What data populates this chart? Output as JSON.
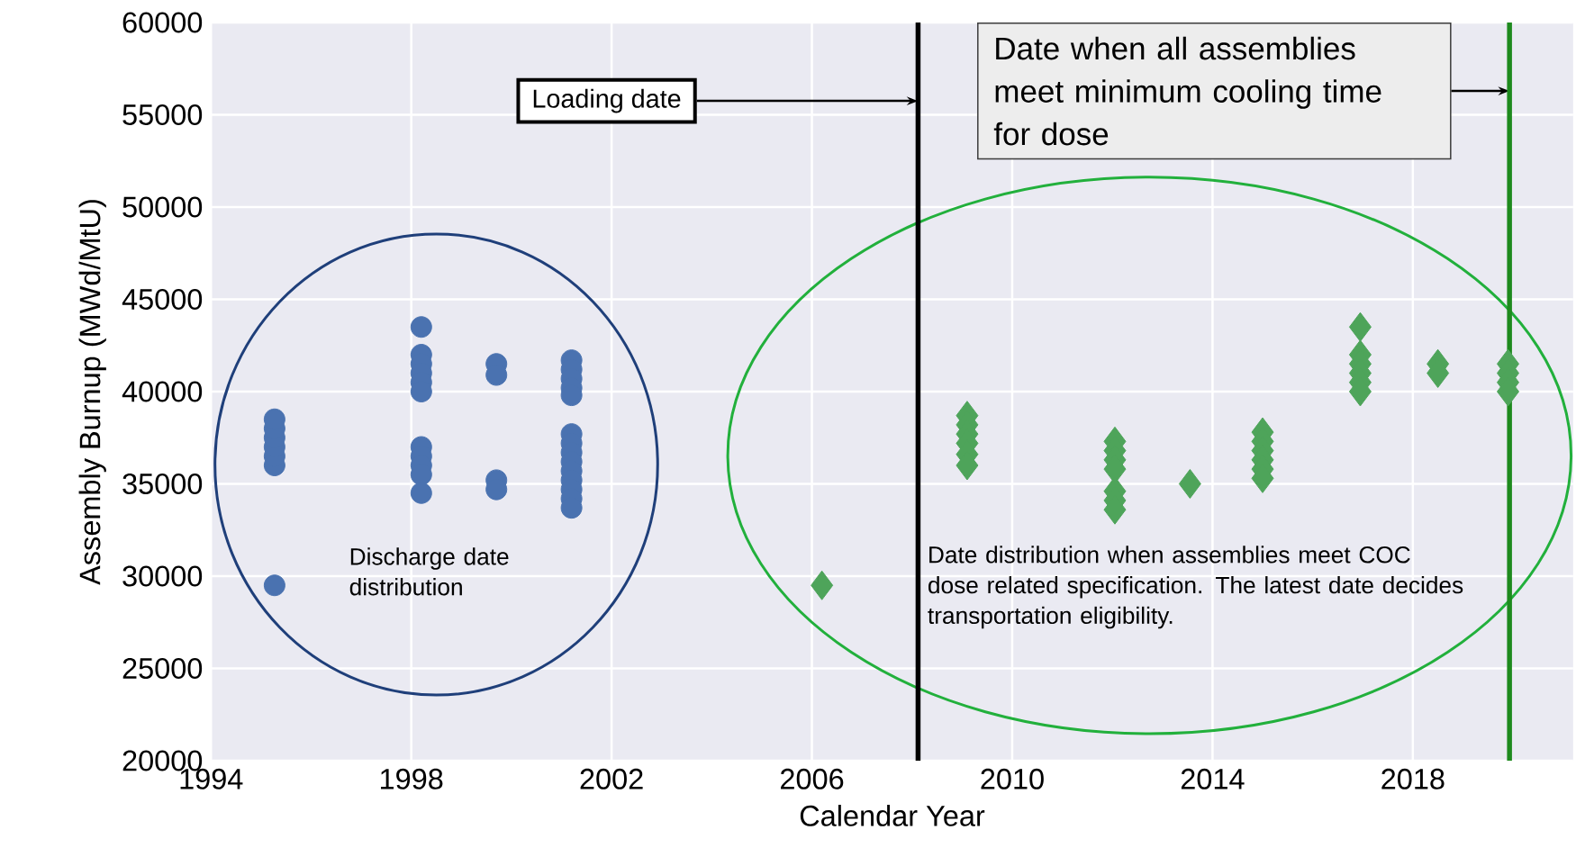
{
  "chart_data": {
    "type": "scatter",
    "xlabel": "Calendar Year",
    "ylabel": "Assembly Burnup (MWd/MtU)",
    "xlim": [
      1994,
      2021.2
    ],
    "ylim": [
      20000,
      60000
    ],
    "xticks": [
      1994,
      1998,
      2002,
      2006,
      2010,
      2014,
      2018
    ],
    "yticks": [
      20000,
      25000,
      30000,
      35000,
      40000,
      45000,
      50000,
      55000,
      60000
    ],
    "grid": true,
    "series": [
      {
        "marker": "circle",
        "color": "#4a72b0",
        "x": [
          1995.27,
          1995.27,
          1995.27,
          1995.27,
          1995.27,
          1995.27,
          1995.27,
          1998.2,
          1998.2,
          1998.2,
          1998.2,
          1998.2,
          1998.2,
          1998.2,
          1998.2,
          1998.2,
          1998.2,
          1998.2,
          1999.7,
          1999.7,
          1999.7,
          1999.7,
          2001.2,
          2001.2,
          2001.2,
          2001.2,
          2001.2,
          2001.2,
          2001.2,
          2001.2,
          2001.2,
          2001.2,
          2001.2,
          2001.2,
          2001.2,
          2001.2
        ],
        "values": [
          36000,
          36500,
          37000,
          37500,
          38000,
          38500,
          29500,
          43500,
          42000,
          41500,
          41000,
          40500,
          40000,
          37000,
          36500,
          36000,
          35500,
          34500,
          41500,
          40900,
          35200,
          34700,
          41700,
          41200,
          40700,
          40200,
          39800,
          37700,
          37200,
          36700,
          36200,
          35700,
          35200,
          34700,
          34200,
          33700
        ]
      },
      {
        "marker": "diamond",
        "color": "#4ea45a",
        "x": [
          2006.2,
          2009.1,
          2009.1,
          2009.1,
          2009.1,
          2009.1,
          2009.1,
          2012.05,
          2012.05,
          2012.05,
          2012.05,
          2012.05,
          2012.05,
          2012.05,
          2013.55,
          2015.0,
          2015.0,
          2015.0,
          2015.0,
          2015.0,
          2015.0,
          2016.95,
          2016.95,
          2016.95,
          2016.95,
          2016.95,
          2016.95,
          2018.5,
          2018.5,
          2019.9,
          2019.9,
          2019.9,
          2019.9
        ],
        "values": [
          29500,
          38700,
          38200,
          37700,
          37200,
          36600,
          36000,
          37300,
          36800,
          36300,
          35800,
          34600,
          34100,
          33600,
          35000,
          37800,
          37300,
          36800,
          36300,
          35800,
          35300,
          43500,
          42000,
          41500,
          41000,
          40500,
          40000,
          41500,
          41000,
          41500,
          41000,
          40500,
          40000
        ]
      }
    ],
    "ref_lines": [
      {
        "axis": "x",
        "value": 2008.12,
        "label": "Loading date",
        "color": "#000000"
      },
      {
        "axis": "x",
        "value": 2019.93,
        "color": "#1e8a1e"
      }
    ],
    "annotations": [
      "Discharge date distribution",
      "Date distribution when assemblies meet COC dose related specification. The latest date decides transportation eligibility.",
      "Date when all assemblies meet minimum cooling time for dose"
    ]
  }
}
